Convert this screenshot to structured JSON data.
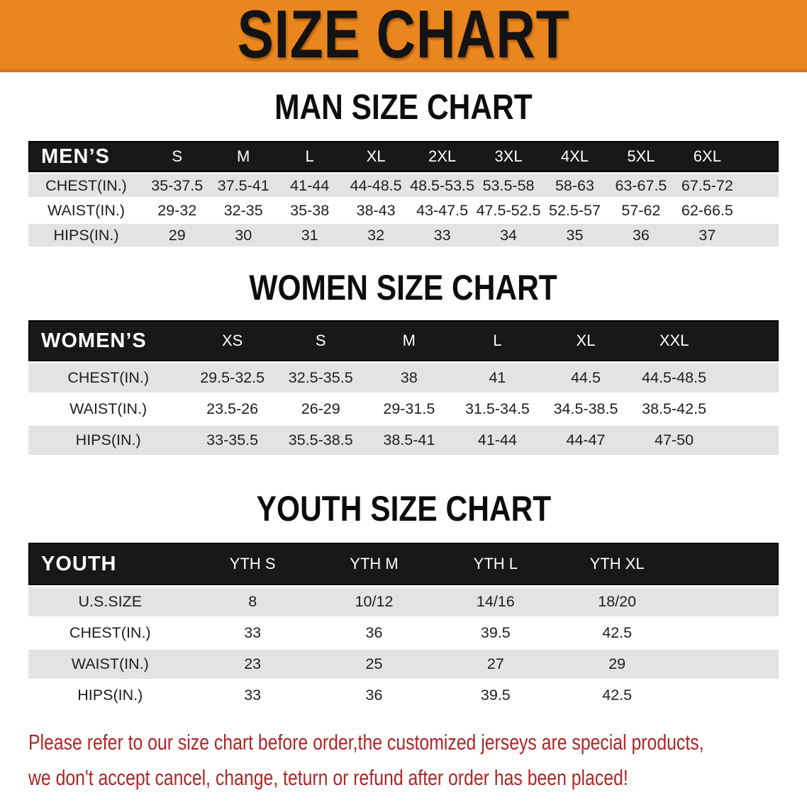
{
  "banner": {
    "title": "SIZE CHART"
  },
  "sections": [
    {
      "id": "men",
      "heading": "MAN SIZE CHART",
      "group_label": "MEN’S",
      "columns": [
        "S",
        "M",
        "L",
        "XL",
        "2XL",
        "3XL",
        "4XL",
        "5XL",
        "6XL"
      ],
      "rows": [
        {
          "label": "CHEST(IN.)",
          "values": [
            "35-37.5",
            "37.5-41",
            "41-44",
            "44-48.5",
            "48.5-53.5",
            "53.5-58",
            "58-63",
            "63-67.5",
            "67.5-72"
          ]
        },
        {
          "label": "WAIST(IN.)",
          "values": [
            "29-32",
            "32-35",
            "35-38",
            "38-43",
            "43-47.5",
            "47.5-52.5",
            "52.5-57",
            "57-62",
            "62-66.5"
          ]
        },
        {
          "label": "HIPS(IN.)",
          "values": [
            "29",
            "30",
            "31",
            "32",
            "33",
            "34",
            "35",
            "36",
            "37"
          ]
        }
      ]
    },
    {
      "id": "women",
      "heading": "WOMEN SIZE CHART",
      "group_label": "WOMEN’S",
      "columns": [
        "XS",
        "S",
        "M",
        "L",
        "XL",
        "XXL"
      ],
      "rows": [
        {
          "label": "CHEST(IN.)",
          "values": [
            "29.5-32.5",
            "32.5-35.5",
            "38",
            "41",
            "44.5",
            "44.5-48.5"
          ]
        },
        {
          "label": "WAIST(IN.)",
          "values": [
            "23.5-26",
            "26-29",
            "29-31.5",
            "31.5-34.5",
            "34.5-38.5",
            "38.5-42.5"
          ]
        },
        {
          "label": "HIPS(IN.)",
          "values": [
            "33-35.5",
            "35.5-38.5",
            "38.5-41",
            "41-44",
            "44-47",
            "47-50"
          ]
        }
      ]
    },
    {
      "id": "youth",
      "heading": "YOUTH SIZE CHART",
      "group_label": "YOUTH",
      "columns": [
        "YTH S",
        "YTH M",
        "YTH L",
        "YTH XL"
      ],
      "rows": [
        {
          "label": "U.S.SIZE",
          "values": [
            "8",
            "10/12",
            "14/16",
            "18/20"
          ]
        },
        {
          "label": "CHEST(IN.)",
          "values": [
            "33",
            "36",
            "39.5",
            "42.5"
          ]
        },
        {
          "label": "WAIST(IN.)",
          "values": [
            "23",
            "25",
            "27",
            "29"
          ]
        },
        {
          "label": "HIPS(IN.)",
          "values": [
            "33",
            "36",
            "39.5",
            "42.5"
          ]
        }
      ]
    }
  ],
  "footer": {
    "line1": "Please refer to our size chart before order,the customized jerseys are special products,",
    "line2": "we don't accept cancel, change, teturn or refund after order has been placed!"
  },
  "colors": {
    "banner_bg": "#E9861E",
    "banner_text": "#131313",
    "table_header_bg": "#181818",
    "table_header_text": "#ffffff",
    "band_gray": "#E1E3E4",
    "band_white": "#ffffff",
    "footer_red": "#B02525"
  }
}
